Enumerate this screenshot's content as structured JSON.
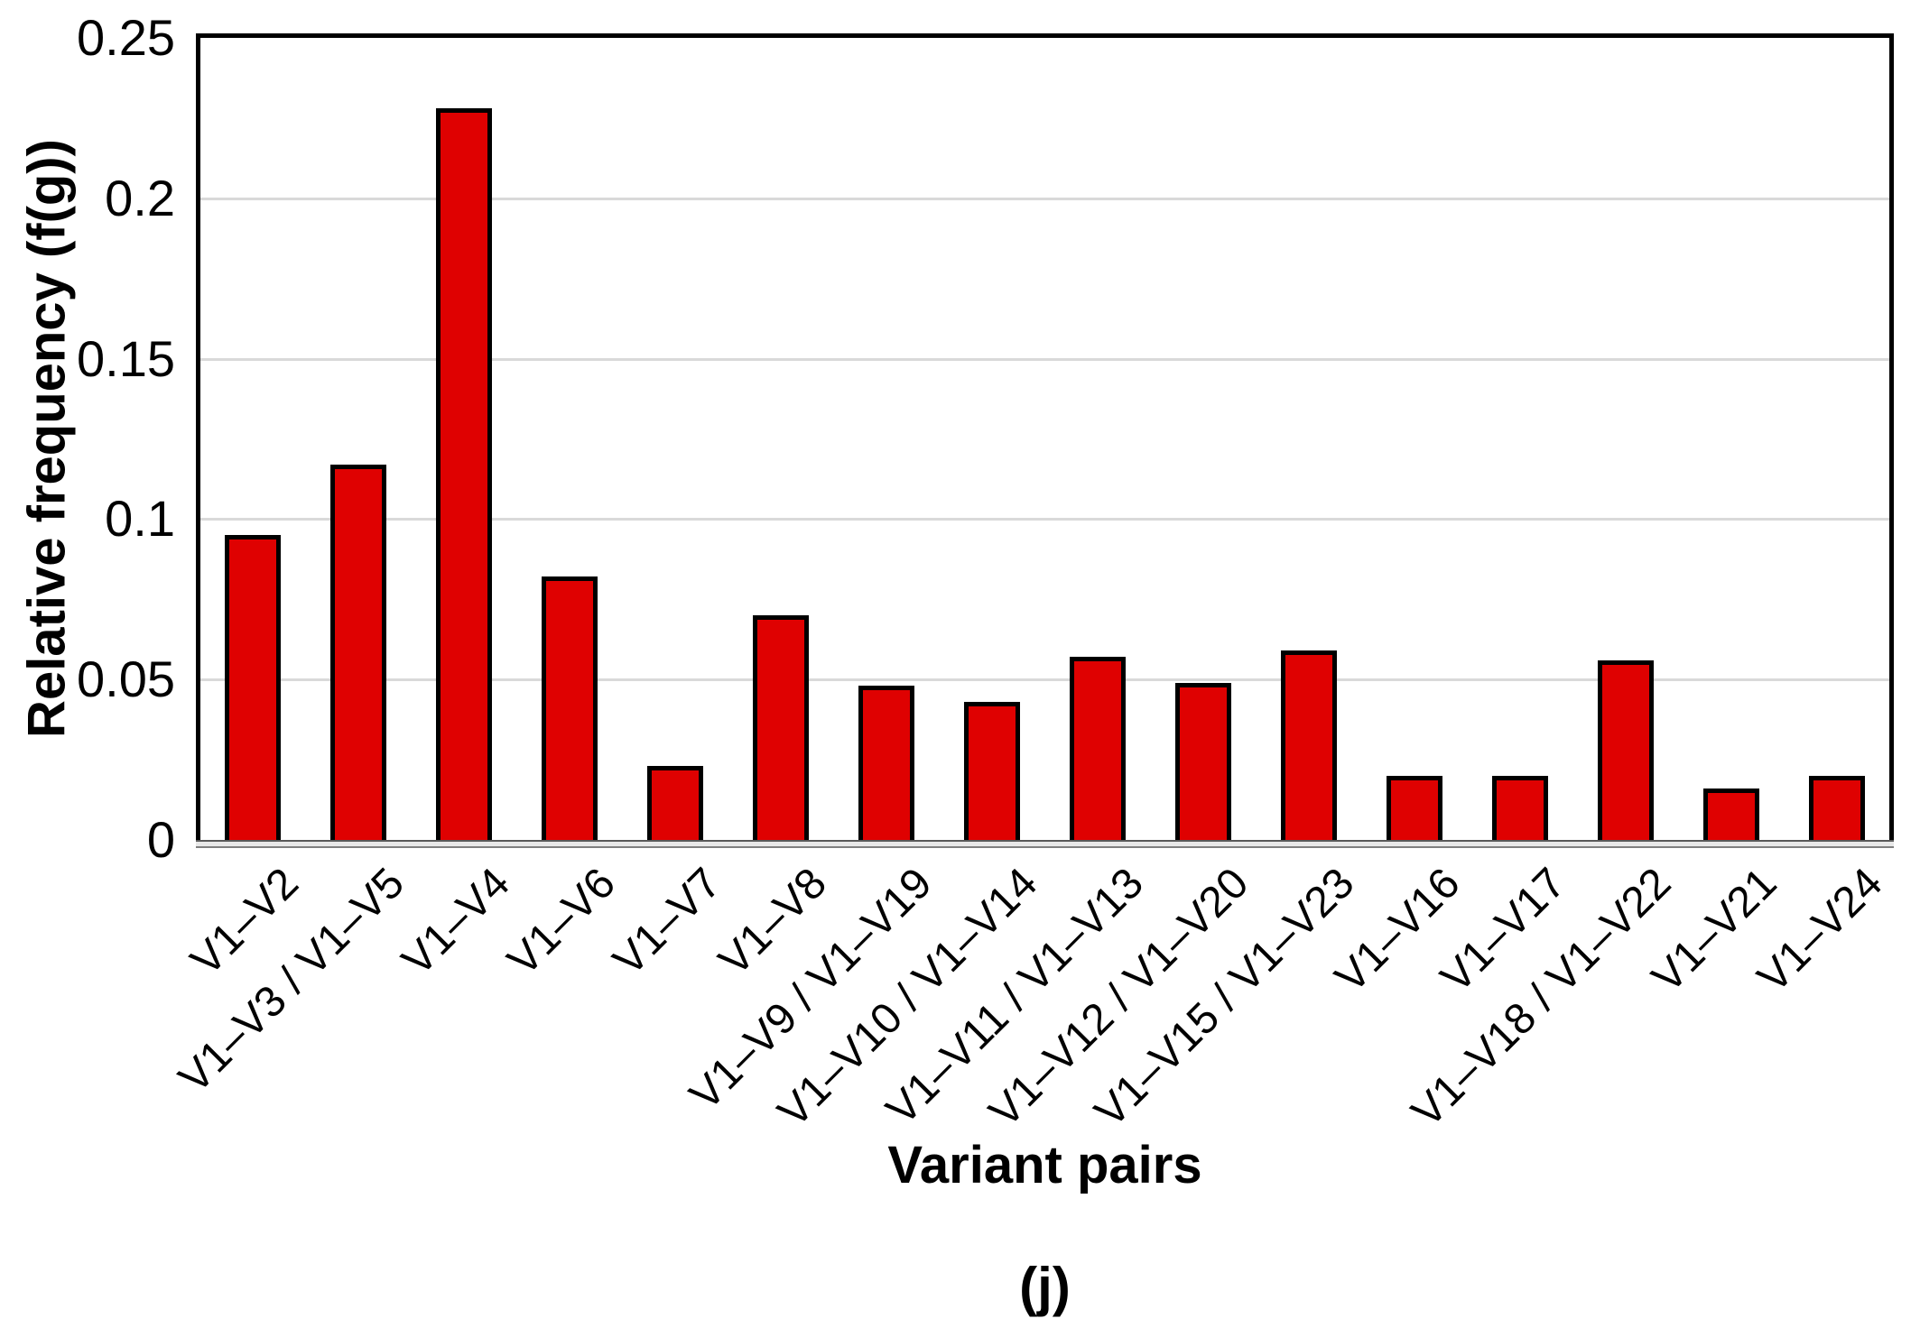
{
  "figure": {
    "caption": "(j)"
  },
  "chart_data": {
    "type": "bar",
    "title": "",
    "xlabel": "Variant pairs",
    "ylabel": "Relative frequency (f(g))",
    "categories": [
      "V1–V2",
      "V1–V3 / V1–V5",
      "V1–V4",
      "V1–V6",
      "V1–V7",
      "V1–V8",
      "V1–V9 / V1–V19",
      "V1–V10 / V1–V14",
      "V1–V11 / V1–V13",
      "V1–V12 / V1–V20",
      "V1–V15 / V1–V23",
      "V1–V16",
      "V1–V17",
      "V1–V18 / V1–V22",
      "V1–V21",
      "V1–V24"
    ],
    "values": [
      0.095,
      0.117,
      0.228,
      0.082,
      0.023,
      0.07,
      0.048,
      0.043,
      0.057,
      0.049,
      0.059,
      0.02,
      0.02,
      0.056,
      0.016,
      0.02
    ],
    "ylim": [
      0,
      0.25
    ],
    "yticks": [
      0,
      0.05,
      0.1,
      0.15,
      0.2,
      0.25
    ],
    "ytick_labels": [
      "0",
      "0.05",
      "0.1",
      "0.15",
      "0.2",
      "0.25"
    ],
    "grid": "horizontal",
    "legend": "none",
    "colors": {
      "bar_fill": "#df0101",
      "bar_border": "#000000",
      "gridline": "#d9d9d9",
      "axis_line_fill": "#e8e8e8",
      "axis_line_edge_top": "#595959",
      "axis_line_edge_bottom": "#7f7f7f",
      "text": "#000000"
    }
  }
}
